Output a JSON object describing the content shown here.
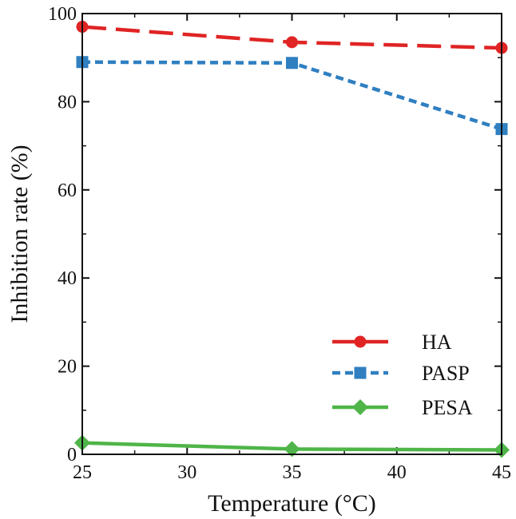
{
  "chart_data": {
    "type": "line",
    "title": "",
    "xlabel": "Temperature (°C)",
    "ylabel": "Inhibition rate (%)",
    "xlim": [
      25,
      45
    ],
    "ylim": [
      0,
      100
    ],
    "xticks": [
      25,
      30,
      35,
      40,
      45
    ],
    "yticks": [
      0,
      20,
      40,
      60,
      80,
      100
    ],
    "x": [
      25,
      35,
      45
    ],
    "series": [
      {
        "name": "HA",
        "values": [
          97,
          93.5,
          92.2
        ],
        "color": "#e02424",
        "marker": "circle",
        "dash": "dashed"
      },
      {
        "name": "PASP",
        "values": [
          89,
          88.8,
          73.8
        ],
        "color": "#2f7fc1",
        "marker": "square",
        "dash": "dotted"
      },
      {
        "name": "PESA",
        "values": [
          2.6,
          1.2,
          1.0
        ],
        "color": "#4fb548",
        "marker": "diamond",
        "dash": "solid"
      }
    ],
    "legend_position": "bottom-right",
    "grid": false
  }
}
